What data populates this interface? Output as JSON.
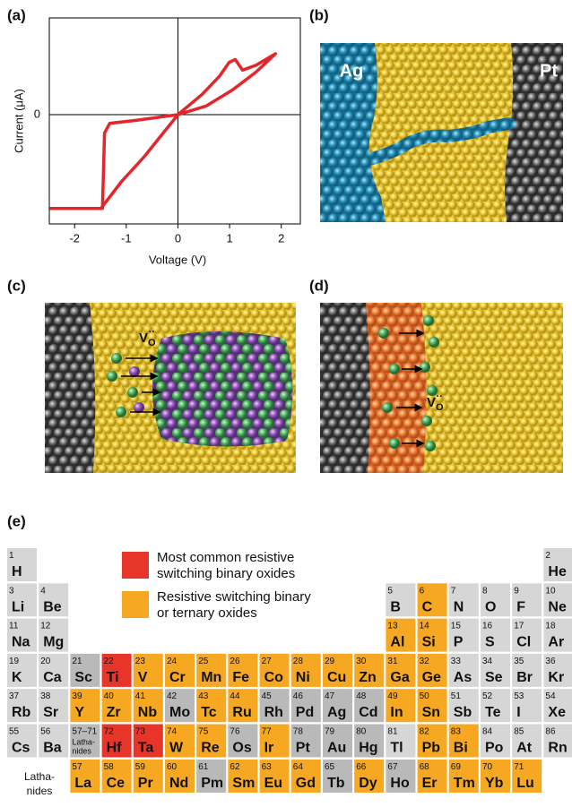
{
  "panel_labels": [
    "(a)",
    "(b)",
    "(c)",
    "(d)",
    "(e)"
  ],
  "chart_data": {
    "type": "line",
    "xlabel": "Voltage (V)",
    "ylabel": "Current (μA)",
    "color": "#e3262b",
    "x": [
      -2.48,
      -1.49,
      -1.09,
      -0.66,
      0,
      0.47,
      0.81,
      0.99,
      1.11,
      1.25,
      1.51,
      1.89,
      1.51,
      1.07,
      0.55,
      0,
      -0.83,
      -1.32,
      -1.42,
      -1.46,
      -2.48
    ],
    "values": [
      -0.97,
      -0.97,
      -0.69,
      -0.44,
      0,
      0.21,
      0.4,
      0.54,
      0.57,
      0.46,
      0.51,
      0.63,
      0.44,
      0.26,
      0.09,
      0,
      -0.06,
      -0.09,
      -0.19,
      -0.97,
      -0.97
    ],
    "xlim": [
      -2.49,
      2.37
    ],
    "ylim": [
      -1.13,
      1
    ],
    "xticks": [
      -2,
      -1,
      0,
      1,
      2
    ],
    "yticks": [
      0
    ]
  },
  "panel_b": {
    "left": "Ag",
    "right": "Pt"
  },
  "panel_c": {
    "vacancy": {
      "base": "V",
      "sub": "O",
      "sup": "··"
    }
  },
  "panel_d": {
    "vacancy": {
      "base": "V",
      "sub": "O",
      "sup": "··"
    }
  },
  "periodic_table": {
    "legend": [
      {
        "color": "#e8352a",
        "lines": [
          "Most common resistive",
          "switching binary oxides"
        ]
      },
      {
        "color": "#f7a823",
        "lines": [
          "Resistive switching binary",
          "or ternary oxides"
        ]
      }
    ],
    "periods": [
      [
        {
          "n": 1,
          "s": "H"
        },
        {
          "n": 2,
          "s": "He"
        }
      ],
      [
        {
          "n": 3,
          "s": "Li"
        },
        {
          "n": 4,
          "s": "Be"
        },
        {
          "n": 5,
          "s": "B"
        },
        {
          "n": 6,
          "s": "C",
          "hl": 1
        },
        {
          "n": 7,
          "s": "N"
        },
        {
          "n": 8,
          "s": "O"
        },
        {
          "n": 9,
          "s": "F"
        },
        {
          "n": 10,
          "s": "Ne"
        }
      ],
      [
        {
          "n": 11,
          "s": "Na"
        },
        {
          "n": 12,
          "s": "Mg"
        },
        {
          "n": 13,
          "s": "Al",
          "hl": 1
        },
        {
          "n": 14,
          "s": "Si",
          "hl": 1
        },
        {
          "n": 15,
          "s": "P"
        },
        {
          "n": 16,
          "s": "S"
        },
        {
          "n": 17,
          "s": "Cl"
        },
        {
          "n": 18,
          "s": "Ar"
        }
      ],
      [
        {
          "n": 19,
          "s": "K"
        },
        {
          "n": 20,
          "s": "Ca"
        },
        {
          "n": 21,
          "s": "Sc"
        },
        {
          "n": 22,
          "s": "Ti",
          "hl": 0
        },
        {
          "n": 23,
          "s": "V",
          "hl": 1
        },
        {
          "n": 24,
          "s": "Cr",
          "hl": 1
        },
        {
          "n": 25,
          "s": "Mn",
          "hl": 1
        },
        {
          "n": 26,
          "s": "Fe",
          "hl": 1
        },
        {
          "n": 27,
          "s": "Co",
          "hl": 1
        },
        {
          "n": 28,
          "s": "Ni",
          "hl": 1
        },
        {
          "n": 29,
          "s": "Cu",
          "hl": 1
        },
        {
          "n": 30,
          "s": "Zn",
          "hl": 1
        },
        {
          "n": 31,
          "s": "Ga",
          "hl": 1
        },
        {
          "n": 32,
          "s": "Ge",
          "hl": 1
        },
        {
          "n": 33,
          "s": "As"
        },
        {
          "n": 34,
          "s": "Se"
        },
        {
          "n": 35,
          "s": "Br"
        },
        {
          "n": 36,
          "s": "Kr"
        }
      ],
      [
        {
          "n": 37,
          "s": "Rb"
        },
        {
          "n": 38,
          "s": "Sr"
        },
        {
          "n": 39,
          "s": "Y",
          "hl": 1
        },
        {
          "n": 40,
          "s": "Zr",
          "hl": 1
        },
        {
          "n": 41,
          "s": "Nb",
          "hl": 1
        },
        {
          "n": 42,
          "s": "Mo"
        },
        {
          "n": 43,
          "s": "Tc",
          "hl": 1
        },
        {
          "n": 44,
          "s": "Ru",
          "hl": 1
        },
        {
          "n": 45,
          "s": "Rh"
        },
        {
          "n": 46,
          "s": "Pd"
        },
        {
          "n": 47,
          "s": "Ag"
        },
        {
          "n": 48,
          "s": "Cd"
        },
        {
          "n": 49,
          "s": "In",
          "hl": 1
        },
        {
          "n": 50,
          "s": "Sn",
          "hl": 1
        },
        {
          "n": 51,
          "s": "Sb"
        },
        {
          "n": 52,
          "s": "Te"
        },
        {
          "n": 53,
          "s": "I"
        },
        {
          "n": 54,
          "s": "Xe"
        }
      ],
      [
        {
          "n": 55,
          "s": "Cs"
        },
        {
          "n": 56,
          "s": "Ba"
        },
        {
          "n": "57–71",
          "lines": [
            "Latha-",
            "nides"
          ]
        },
        {
          "n": 72,
          "s": "Hf",
          "hl": 0
        },
        {
          "n": 73,
          "s": "Ta",
          "hl": 0
        },
        {
          "n": 74,
          "s": "W",
          "hl": 1
        },
        {
          "n": 75,
          "s": "Re",
          "hl": 1
        },
        {
          "n": 76,
          "s": "Os"
        },
        {
          "n": 77,
          "s": "Ir",
          "hl": 1
        },
        {
          "n": 78,
          "s": "Pt"
        },
        {
          "n": 79,
          "s": "Au"
        },
        {
          "n": 80,
          "s": "Hg"
        },
        {
          "n": 81,
          "s": "Tl"
        },
        {
          "n": 82,
          "s": "Pb",
          "hl": 1
        },
        {
          "n": 83,
          "s": "Bi",
          "hl": 1
        },
        {
          "n": 84,
          "s": "Po"
        },
        {
          "n": 85,
          "s": "At"
        },
        {
          "n": 86,
          "s": "Rn"
        }
      ]
    ],
    "lanthanides": {
      "lines": [
        "Latha-",
        "nides"
      ],
      "elements": [
        {
          "n": 57,
          "s": "La",
          "hl": 1
        },
        {
          "n": 58,
          "s": "Ce",
          "hl": 1
        },
        {
          "n": 59,
          "s": "Pr",
          "hl": 1
        },
        {
          "n": 60,
          "s": "Nd",
          "hl": 1
        },
        {
          "n": 61,
          "s": "Pm"
        },
        {
          "n": 62,
          "s": "Sm",
          "hl": 1
        },
        {
          "n": 63,
          "s": "Eu",
          "hl": 1
        },
        {
          "n": 64,
          "s": "Gd",
          "hl": 1
        },
        {
          "n": 65,
          "s": "Tb"
        },
        {
          "n": 66,
          "s": "Dy",
          "hl": 1
        },
        {
          "n": 67,
          "s": "Ho"
        },
        {
          "n": 68,
          "s": "Er",
          "hl": 1
        },
        {
          "n": 69,
          "s": "Tm",
          "hl": 1
        },
        {
          "n": 70,
          "s": "Yb",
          "hl": 1
        },
        {
          "n": 71,
          "s": "Lu",
          "hl": 1
        }
      ]
    }
  }
}
